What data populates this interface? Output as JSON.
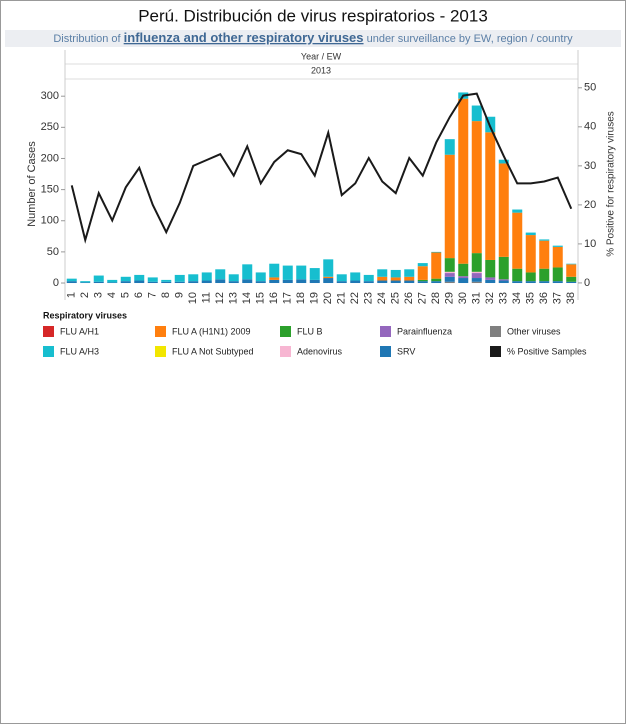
{
  "chart_data": {
    "type": "bar",
    "title": "Perú. Distribución de virus respiratorios - 2013",
    "subtitle": {
      "before": "Distribution of ",
      "link": "influenza and other respiratory viruses",
      "after": " under surveillance by EW, region / country"
    },
    "header": "Year / EW",
    "year": "2013",
    "y_label": "Number of Cases",
    "y2_label": "% Positive for respiratory viruses",
    "legend_title": "Respiratory viruses",
    "categories": [
      "1",
      "2",
      "3",
      "4",
      "5",
      "6",
      "7",
      "8",
      "9",
      "10",
      "11",
      "12",
      "13",
      "14",
      "15",
      "16",
      "17",
      "18",
      "19",
      "20",
      "21",
      "22",
      "23",
      "24",
      "25",
      "26",
      "27",
      "28",
      "29",
      "30",
      "31",
      "32",
      "33",
      "34",
      "35",
      "36",
      "37",
      "38"
    ],
    "ylim": [
      -8,
      326
    ],
    "yticks": [
      0,
      50,
      100,
      150,
      200,
      250,
      300
    ],
    "y2lim": [
      -1.3,
      52
    ],
    "y2ticks": [
      0,
      10,
      20,
      30,
      40,
      50
    ],
    "series": [
      {
        "name": "FLU A/H1",
        "color": "#d62728",
        "values": [
          0,
          0,
          0,
          0,
          0,
          0,
          0,
          0,
          0,
          0,
          0,
          0,
          0,
          0,
          0,
          0,
          0,
          0,
          0,
          0,
          0,
          0,
          0,
          0,
          0,
          0,
          0,
          0,
          0,
          0,
          0,
          0,
          0,
          0,
          0,
          0,
          0,
          0
        ]
      },
      {
        "name": "FLU A/H3",
        "color": "#17becf",
        "values": [
          4,
          2,
          10,
          4,
          7,
          9,
          7,
          3,
          11,
          11,
          13,
          16,
          11,
          24,
          14,
          22,
          23,
          22,
          19,
          28,
          11,
          13,
          10,
          12,
          12,
          12,
          5,
          1,
          25,
          10,
          25,
          25,
          6,
          5,
          4,
          2,
          2,
          1
        ]
      },
      {
        "name": "FLU A (H1N1) 2009",
        "color": "#ff7f0e",
        "values": [
          0,
          0,
          0,
          0,
          0,
          0,
          0,
          0,
          0,
          0,
          0,
          0,
          0,
          0,
          0,
          4,
          0,
          0,
          0,
          2,
          0,
          0,
          0,
          6,
          5,
          6,
          22,
          42,
          166,
          265,
          212,
          205,
          150,
          90,
          60,
          45,
          33,
          20
        ]
      },
      {
        "name": "FLU A Not Subtyped",
        "color": "#f2e600",
        "values": [
          0,
          0,
          0,
          0,
          0,
          0,
          0,
          0,
          0,
          0,
          0,
          0,
          0,
          0,
          0,
          0,
          0,
          0,
          0,
          0,
          0,
          0,
          0,
          0,
          0,
          0,
          0,
          0,
          0,
          0,
          0,
          0,
          0,
          0,
          0,
          0,
          0,
          0
        ]
      },
      {
        "name": "FLU B",
        "color": "#2ca02c",
        "values": [
          0,
          0,
          0,
          0,
          0,
          0,
          0,
          0,
          0,
          0,
          0,
          0,
          0,
          0,
          0,
          0,
          0,
          0,
          0,
          0,
          0,
          0,
          0,
          0,
          0,
          0,
          2,
          4,
          22,
          20,
          30,
          28,
          36,
          20,
          14,
          20,
          22,
          8
        ]
      },
      {
        "name": "Adenovirus",
        "color": "#f7b6d2",
        "values": [
          0,
          0,
          0,
          0,
          0,
          0,
          0,
          0,
          0,
          0,
          0,
          0,
          0,
          0,
          0,
          0,
          0,
          0,
          0,
          0,
          0,
          0,
          0,
          0,
          0,
          0,
          0,
          0,
          2,
          0,
          2,
          0,
          0,
          0,
          0,
          0,
          0,
          0
        ]
      },
      {
        "name": "Parainfluenza",
        "color": "#9467bd",
        "values": [
          0,
          0,
          0,
          0,
          0,
          0,
          0,
          0,
          0,
          0,
          0,
          0,
          0,
          0,
          0,
          0,
          0,
          0,
          0,
          0,
          0,
          0,
          0,
          0,
          0,
          0,
          0,
          0,
          6,
          3,
          8,
          4,
          2,
          0,
          0,
          0,
          0,
          0
        ]
      },
      {
        "name": "SRV",
        "color": "#1f77b4",
        "values": [
          3,
          1,
          2,
          1,
          3,
          4,
          2,
          2,
          2,
          3,
          4,
          6,
          3,
          6,
          3,
          5,
          5,
          6,
          5,
          8,
          3,
          4,
          3,
          4,
          4,
          4,
          3,
          3,
          8,
          8,
          6,
          5,
          4,
          3,
          3,
          3,
          3,
          2
        ]
      },
      {
        "name": "Other viruses",
        "color": "#7f7f7f",
        "values": [
          0,
          0,
          0,
          0,
          0,
          0,
          0,
          0,
          0,
          0,
          0,
          0,
          0,
          0,
          0,
          0,
          0,
          0,
          0,
          0,
          0,
          0,
          0,
          0,
          0,
          0,
          0,
          0,
          2,
          0,
          2,
          0,
          0,
          0,
          0,
          0,
          0,
          0
        ]
      },
      {
        "name": "% Positive Samples",
        "color": "#1a1a1a",
        "axis": "y2",
        "values": [
          25,
          11,
          23,
          16,
          24.5,
          29.5,
          20,
          13,
          20.5,
          30,
          31.5,
          33,
          27.5,
          35,
          25.5,
          31,
          34,
          33,
          27.5,
          38.5,
          22.5,
          25.5,
          32,
          26,
          23,
          32,
          27.5,
          36,
          42.5,
          48,
          48.5,
          40,
          32.5,
          25.5,
          25.5,
          26,
          27,
          19
        ]
      }
    ]
  }
}
